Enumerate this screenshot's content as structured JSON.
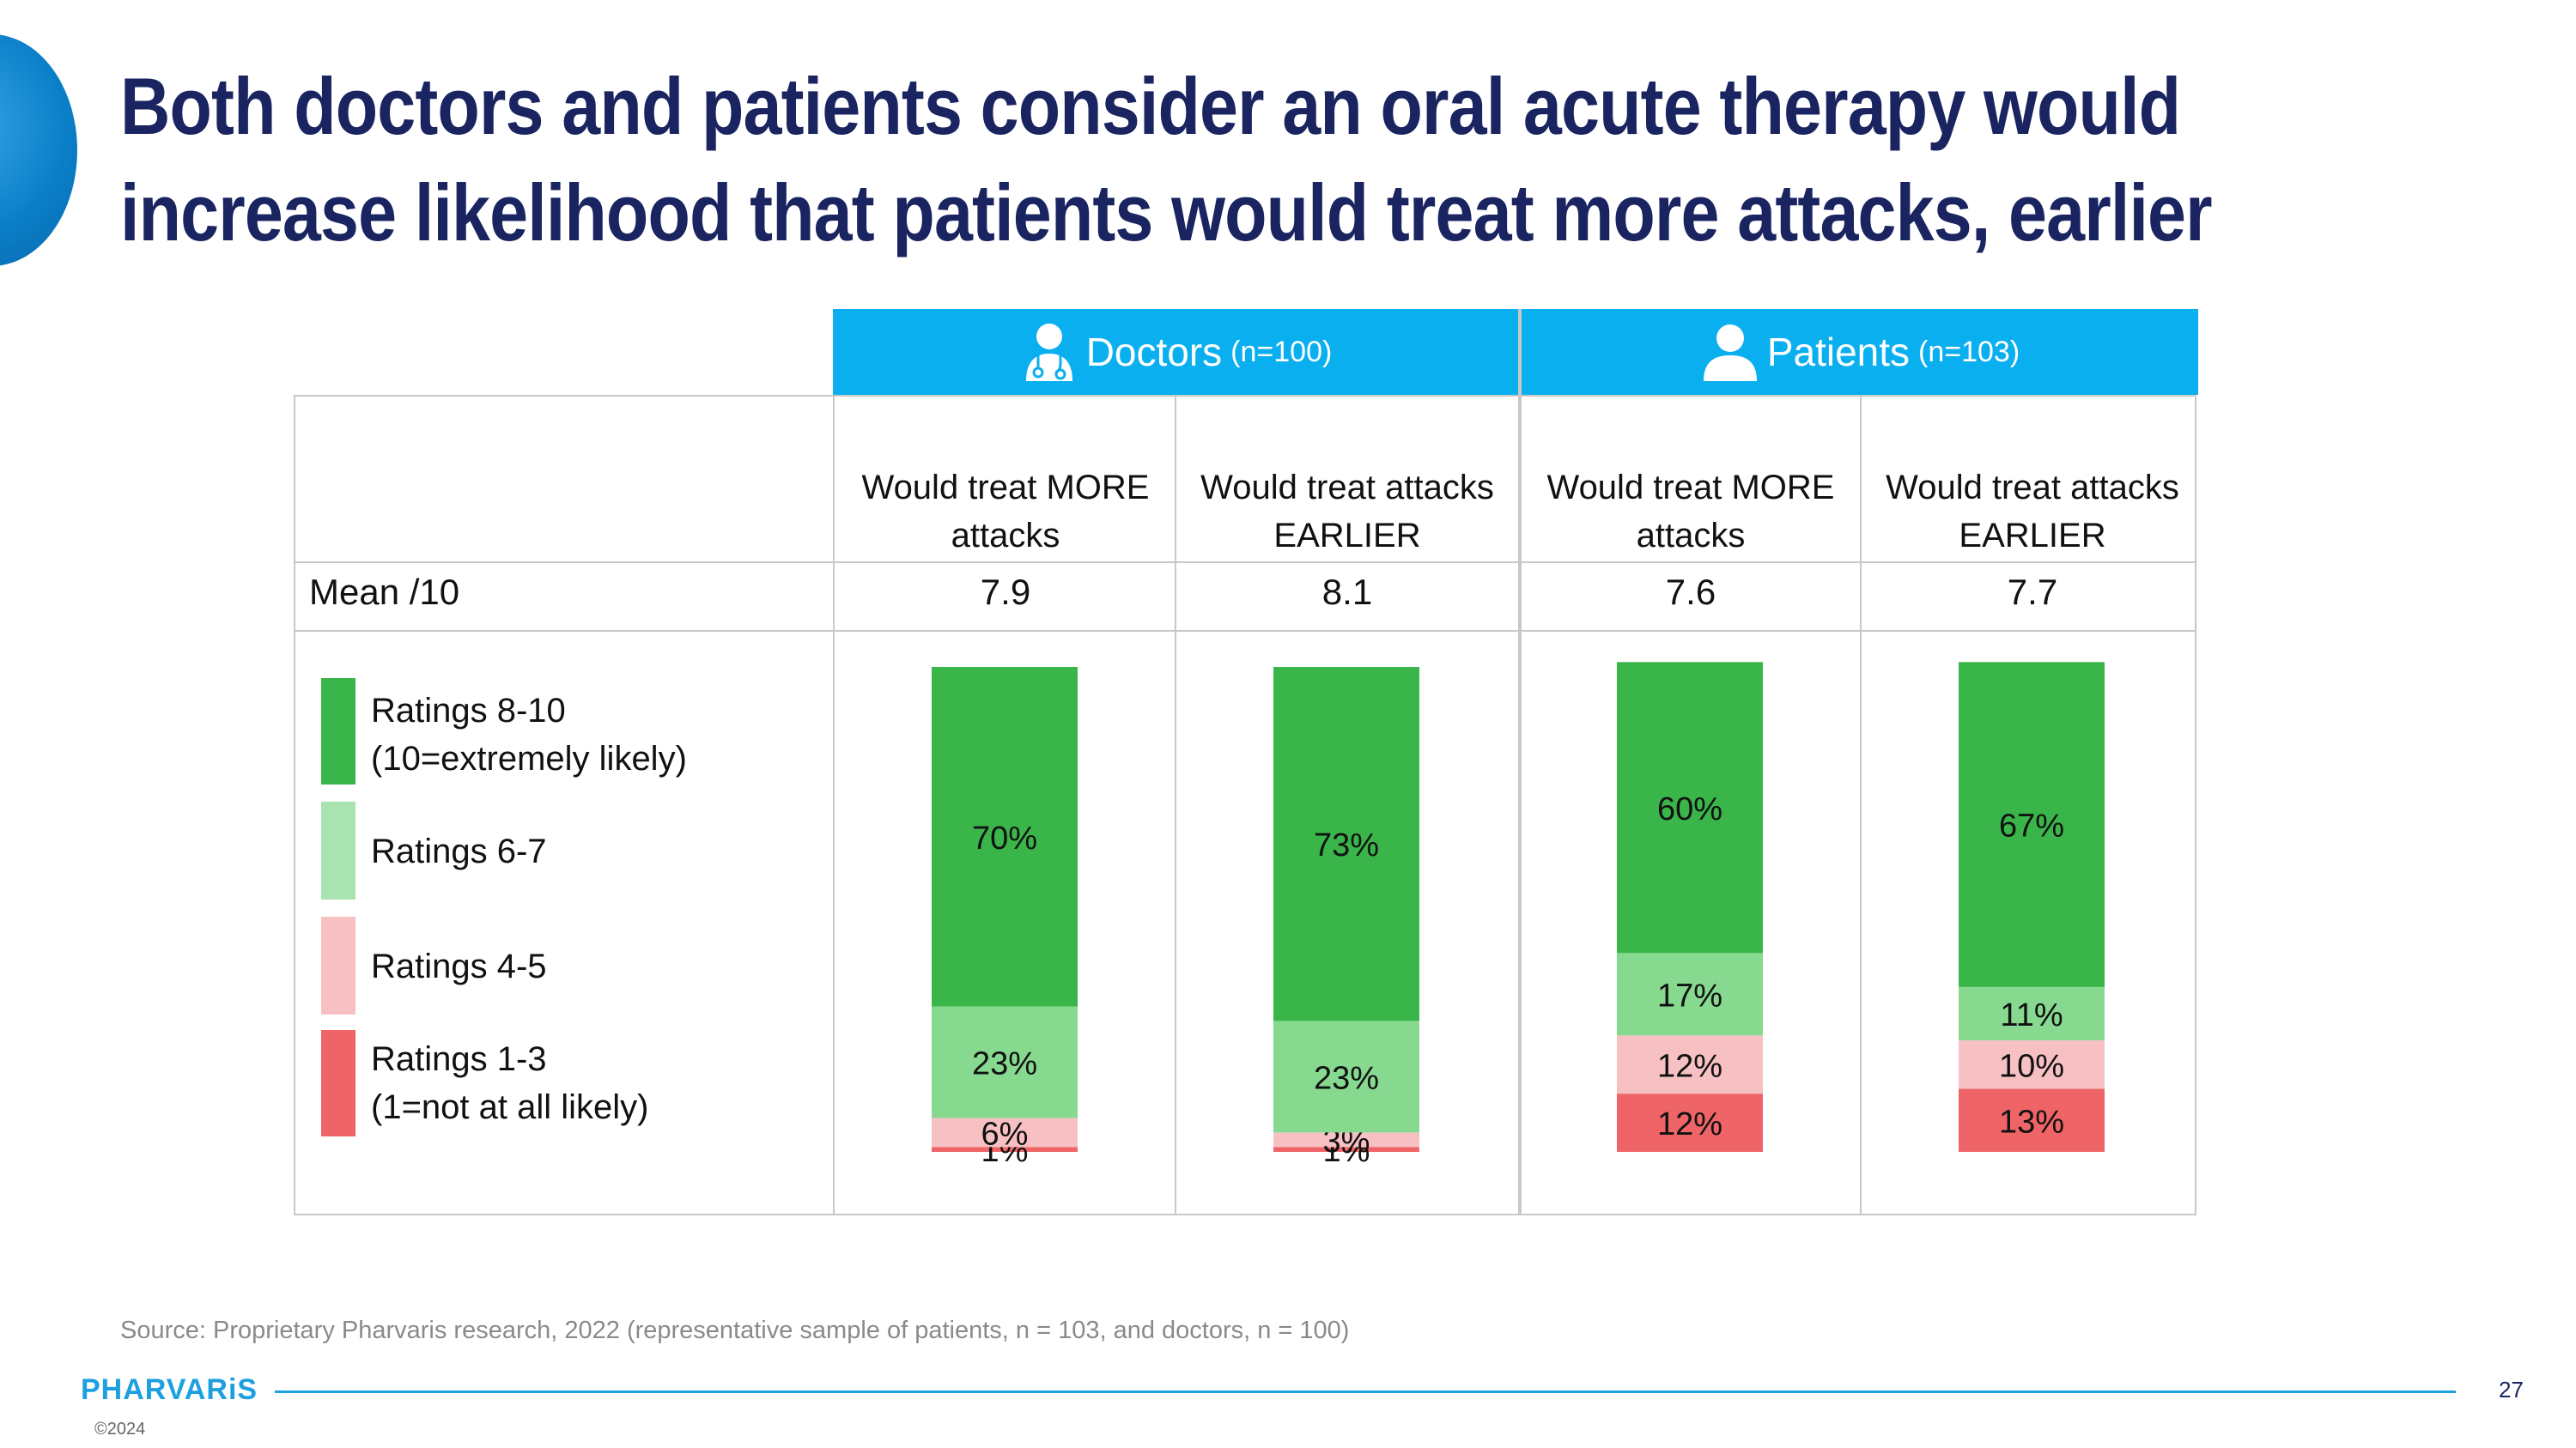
{
  "title": {
    "line1": "Both doctors and patients consider an oral acute therapy would",
    "line2": "increase likelihood that patients would treat more attacks, earlier"
  },
  "groups": [
    {
      "label": "Doctors",
      "n": "(n=100)",
      "icon": "doctor-icon"
    },
    {
      "label": "Patients",
      "n": "(n=103)",
      "icon": "person-icon"
    }
  ],
  "columns": [
    {
      "line1": "Would treat MORE",
      "line2": "attacks"
    },
    {
      "line1": "Would treat attacks",
      "line2": "EARLIER"
    },
    {
      "line1": "Would treat MORE",
      "line2": "attacks"
    },
    {
      "line1": "Would treat attacks",
      "line2": "EARLIER"
    }
  ],
  "mean": {
    "label": "Mean /10",
    "values": [
      "7.9",
      "8.1",
      "7.6",
      "7.7"
    ]
  },
  "legend": [
    {
      "line1": "Ratings 8-10",
      "line2": "(10=extremely likely)",
      "color": "#3ab54a"
    },
    {
      "line1": "Ratings 6-7",
      "line2": "",
      "color": "#a9e4b0"
    },
    {
      "line1": "Ratings 4-5",
      "line2": "",
      "color": "#f7c1c4"
    },
    {
      "line1": "Ratings 1-3",
      "line2": "(1=not at all likely)",
      "color": "#ef6466"
    }
  ],
  "chart_data": {
    "type": "bar",
    "stacked": true,
    "categories": [
      "Would treat MORE attacks",
      "Would treat attacks EARLIER",
      "Would treat MORE attacks",
      "Would treat attacks EARLIER"
    ],
    "series": [
      {
        "name": "Ratings 8-10",
        "color": "#3ab54a",
        "values": [
          70,
          73,
          60,
          67
        ],
        "labels": [
          "70%",
          "73%",
          "60%",
          "67%"
        ]
      },
      {
        "name": "Ratings 6-7",
        "color": "#86d98f",
        "values": [
          23,
          23,
          17,
          11
        ],
        "labels": [
          "23%",
          "23%",
          "17%",
          "11%"
        ]
      },
      {
        "name": "Ratings 4-5",
        "color": "#f7c1c4",
        "values": [
          6,
          3,
          12,
          10
        ],
        "labels": [
          "6%",
          "3%",
          "12%",
          "10%"
        ]
      },
      {
        "name": "Ratings 1-3",
        "color": "#ef6466",
        "values": [
          1,
          1,
          12,
          13
        ],
        "labels": [
          "1%",
          "1%",
          "12%",
          "13%"
        ]
      }
    ]
  },
  "source": "Source: Proprietary Pharvaris research, 2022 (representative sample of patients, n = 103, and doctors, n = 100)",
  "logo": "PHARVARiS",
  "copyright": "©2024",
  "page_number": "27"
}
